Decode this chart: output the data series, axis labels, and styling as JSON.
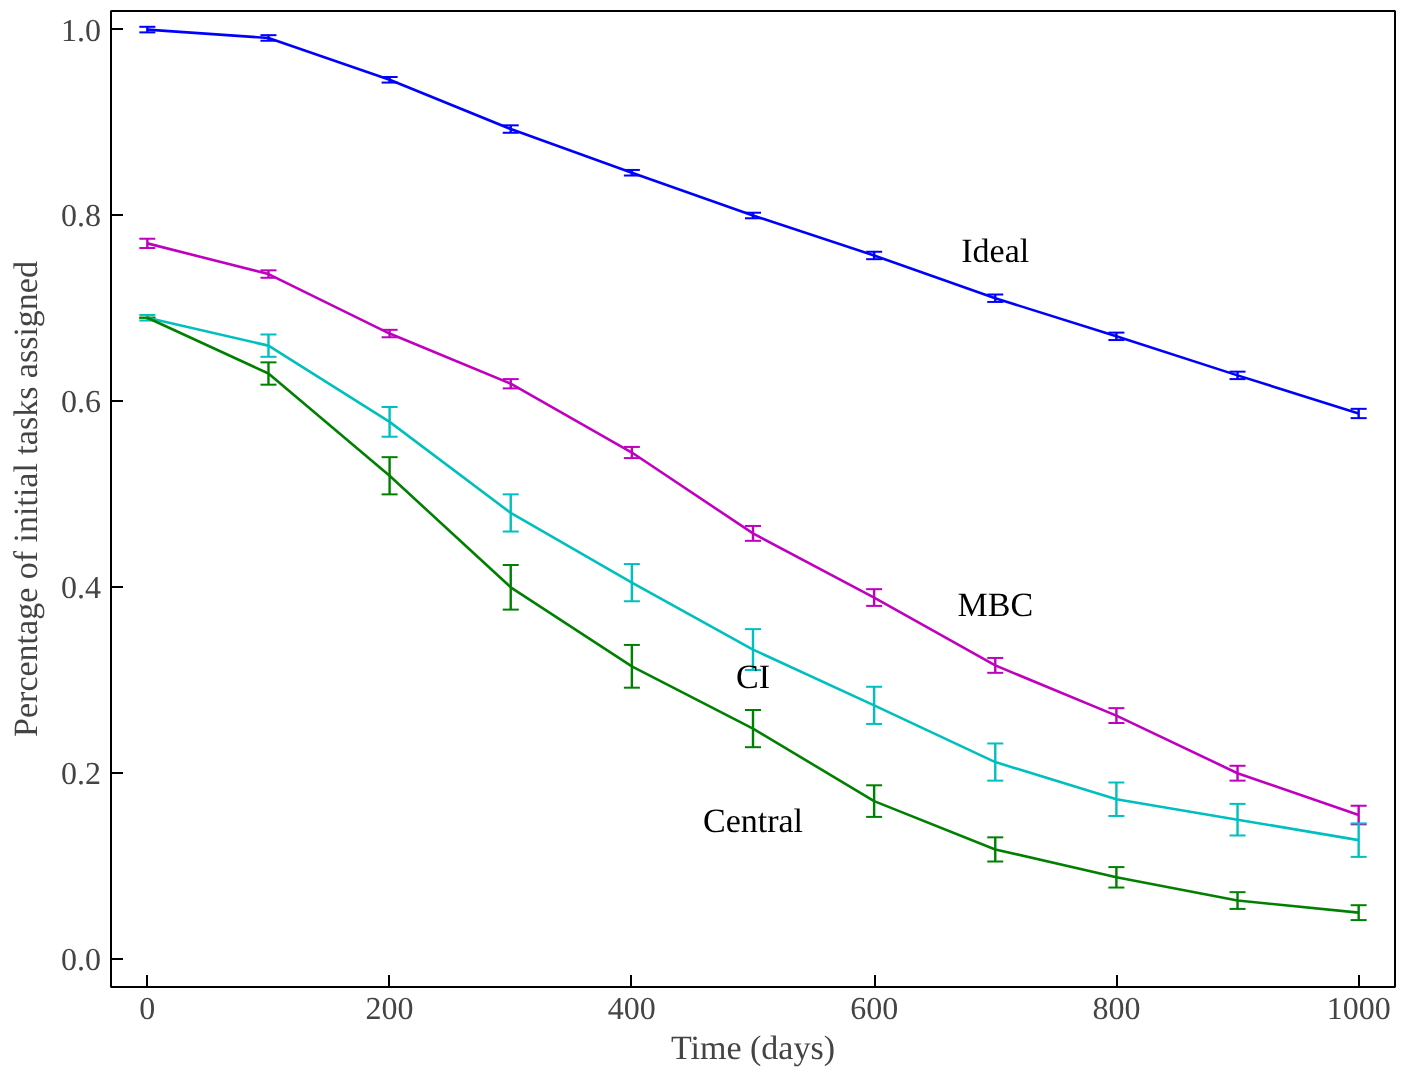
{
  "chart_data": {
    "type": "line",
    "xlabel": "Time (days)",
    "ylabel": "Percentage of initial tasks assigned",
    "x": [
      0,
      100,
      200,
      300,
      400,
      500,
      600,
      700,
      800,
      900,
      1000
    ],
    "xlim": [
      -30,
      1030
    ],
    "ylim": [
      -0.03,
      1.02
    ],
    "xticks": [
      0,
      200,
      400,
      600,
      800,
      1000
    ],
    "yticks": [
      {
        "value": 0,
        "label": "0.0"
      },
      0.2,
      0.4,
      0.6,
      0.8,
      {
        "value": 1,
        "label": "1.0"
      }
    ],
    "grid": false,
    "marker": "none",
    "line_style": "solid",
    "series": [
      {
        "name": "Ideal",
        "color": "#0000ff",
        "values": [
          1.0,
          0.991,
          0.946,
          0.893,
          0.846,
          0.8,
          0.757,
          0.711,
          0.67,
          0.628,
          0.587
        ],
        "errors": [
          0.003,
          0.003,
          0.003,
          0.004,
          0.003,
          0.003,
          0.004,
          0.004,
          0.004,
          0.004,
          0.005
        ]
      },
      {
        "name": "MBC",
        "color": "#bf00bf",
        "values": [
          0.77,
          0.737,
          0.673,
          0.619,
          0.545,
          0.458,
          0.389,
          0.316,
          0.262,
          0.2,
          0.155
        ],
        "errors": [
          0.005,
          0.004,
          0.004,
          0.005,
          0.006,
          0.008,
          0.009,
          0.008,
          0.008,
          0.008,
          0.01
        ]
      },
      {
        "name": "CI",
        "color": "#00bfbf",
        "values": [
          0.69,
          0.66,
          0.578,
          0.48,
          0.405,
          0.333,
          0.273,
          0.212,
          0.172,
          0.15,
          0.128
        ],
        "errors": [
          0.003,
          0.012,
          0.016,
          0.02,
          0.02,
          0.022,
          0.02,
          0.02,
          0.018,
          0.017,
          0.018
        ]
      },
      {
        "name": "Central",
        "color": "#008000",
        "values": [
          0.69,
          0.63,
          0.52,
          0.4,
          0.315,
          0.248,
          0.17,
          0.118,
          0.088,
          0.063,
          0.05
        ],
        "errors": [
          null,
          0.012,
          0.02,
          0.024,
          0.023,
          0.02,
          0.017,
          0.013,
          0.011,
          0.009,
          0.008
        ]
      }
    ]
  }
}
